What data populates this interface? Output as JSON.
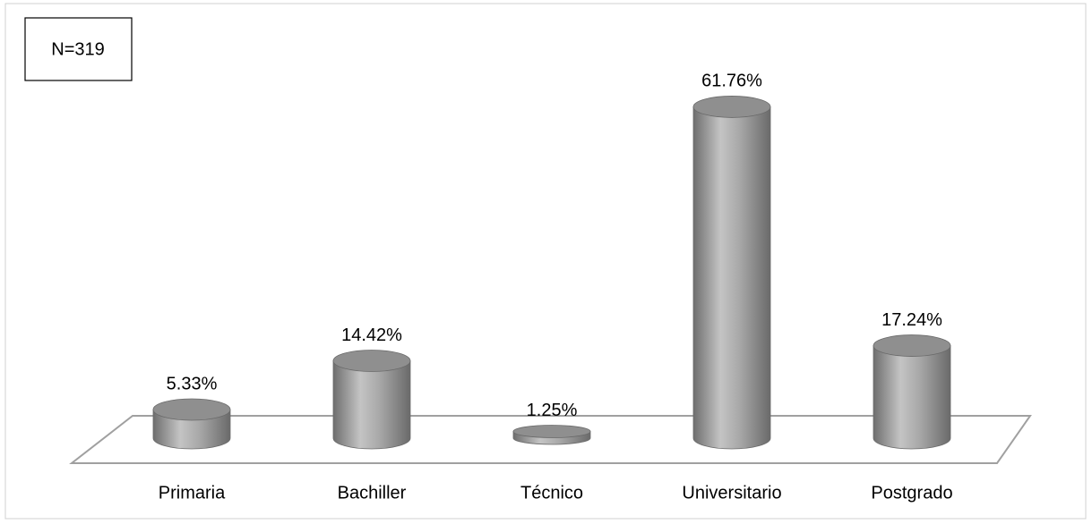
{
  "chart_data": {
    "type": "bar",
    "annotation": "N=319",
    "categories": [
      "Primaria",
      "Bachiller",
      "Técnico",
      "Universitario",
      "Postgrado"
    ],
    "values": [
      5.33,
      14.42,
      1.25,
      61.76,
      17.24
    ],
    "value_labels": [
      "5.33%",
      "14.42%",
      "1.25%",
      "61.76%",
      "17.24%"
    ],
    "color": "#a6a6a6"
  }
}
